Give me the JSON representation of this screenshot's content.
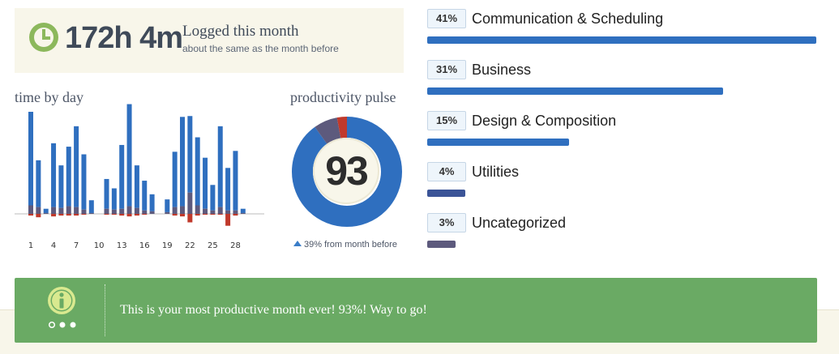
{
  "summary": {
    "total_time": "172h 4m",
    "title": "Logged this month",
    "subtitle": "about the same as the month before",
    "icon": "clock-icon"
  },
  "time_by_day": {
    "title": "time by day",
    "colors": {
      "productive": "#2f6fbf",
      "neutral": "#5d5a7d",
      "distracting": "#c0392b"
    }
  },
  "chart_data": {
    "type": "bar",
    "title": "time by day",
    "x": [
      1,
      2,
      3,
      4,
      5,
      6,
      7,
      8,
      9,
      10,
      11,
      12,
      13,
      14,
      15,
      16,
      17,
      18,
      19,
      20,
      21,
      22,
      23,
      24,
      25,
      26,
      27,
      28,
      29,
      30
    ],
    "xticklabels": [
      "1",
      "4",
      "7",
      "10",
      "13",
      "16",
      "19",
      "22",
      "25",
      "28"
    ],
    "series": [
      {
        "values": [
          11.0,
          5.5,
          0.5,
          7.5,
          5.0,
          7.0,
          9.5,
          6.5,
          1.5,
          0,
          3.5,
          2.5,
          7.5,
          12.0,
          5.0,
          3.5,
          2.0,
          0,
          1.5,
          6.5,
          10.5,
          9.0,
          8.0,
          6.0,
          3.0,
          9.5,
          5.0,
          7.0,
          0.5,
          0
        ]
      },
      {
        "values": [
          1.0,
          0.8,
          0.1,
          0.8,
          0.7,
          0.9,
          0.8,
          0.5,
          0.1,
          0,
          0.6,
          0.5,
          0.6,
          0.9,
          0.7,
          0.4,
          0.3,
          0,
          0.2,
          0.8,
          0.9,
          2.5,
          1.0,
          0.6,
          0.4,
          0.8,
          0.4,
          0.4,
          0.1,
          0
        ]
      },
      {
        "values": [
          0.2,
          0.4,
          0,
          0.3,
          0.2,
          0.2,
          0.2,
          0.1,
          0,
          0,
          0.1,
          0.1,
          0.2,
          0.3,
          0.2,
          0.1,
          0,
          0,
          0,
          0.2,
          0.3,
          1.0,
          0.2,
          0.1,
          0.1,
          0.1,
          1.4,
          0.2,
          0,
          0
        ]
      }
    ]
  },
  "pulse": {
    "title": "productivity pulse",
    "score": "93",
    "change": "39% from month before",
    "segments": [
      {
        "value": 0.9,
        "color": "#2f6fbf"
      },
      {
        "value": 0.07,
        "color": "#5d5a7d"
      },
      {
        "value": 0.03,
        "color": "#c0392b"
      }
    ]
  },
  "categories": [
    {
      "pct": "41%",
      "name": "Communication & Scheduling",
      "share": 1.0,
      "color": "#2f6fbf"
    },
    {
      "pct": "31%",
      "name": "Business",
      "share": 0.76,
      "color": "#2f6fbf"
    },
    {
      "pct": "15%",
      "name": "Design & Composition",
      "share": 0.365,
      "color": "#2f6fbf"
    },
    {
      "pct": "4%",
      "name": "Utilities",
      "share": 0.098,
      "color": "#3b5497"
    },
    {
      "pct": "3%",
      "name": "Uncategorized",
      "share": 0.073,
      "color": "#5d5a7d"
    }
  ],
  "notice": {
    "message": "This is your most productive month ever! 93%! Way to go!",
    "icon": "info-icon",
    "dots": "pagination-dots-icon"
  }
}
